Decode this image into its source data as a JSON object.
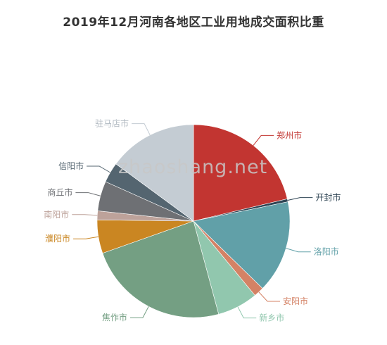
{
  "chart_data": {
    "type": "pie",
    "title": "2019年12月河南各地区工业用地成交面积比重",
    "slices": [
      {
        "label": "郑州市",
        "value": 21.3,
        "color": "#c23531"
      },
      {
        "label": "开封市",
        "value": 0.5,
        "color": "#2f4554"
      },
      {
        "label": "洛阳市",
        "value": 15.5,
        "color": "#61a0a8"
      },
      {
        "label": "安阳市",
        "value": 1.7,
        "color": "#d48265"
      },
      {
        "label": "新乡市",
        "value": 6.8,
        "color": "#91c7ae"
      },
      {
        "label": "焦作市",
        "value": 23.8,
        "color": "#749f83"
      },
      {
        "label": "濮阳市",
        "value": 5.6,
        "color": "#ca8622"
      },
      {
        "label": "南阳市",
        "value": 1.5,
        "color": "#bda29a"
      },
      {
        "label": "商丘市",
        "value": 5.0,
        "color": "#6e7074"
      },
      {
        "label": "信阳市",
        "value": 3.4,
        "color": "#546570"
      },
      {
        "label": "驻马店市",
        "value": 14.9,
        "color": "#c4ccd3"
      }
    ]
  },
  "watermark": "zhaoshang.net"
}
